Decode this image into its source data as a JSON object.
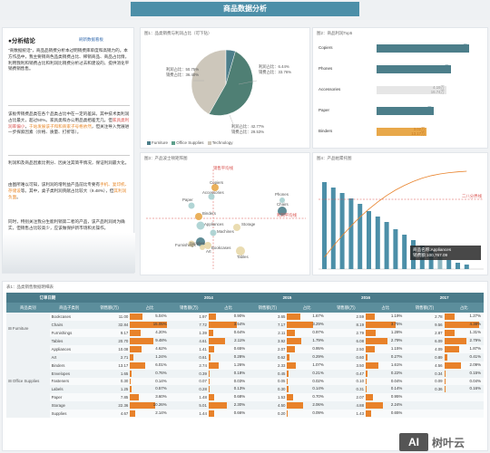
{
  "header": {
    "title": "商品数据分析"
  },
  "analysis": {
    "title": "●分析结论",
    "link": "刷新数据看板",
    "p1": "\"商数据统话\"，商品品销费分析本过明销费库单度和高销力的。本方作品中，我主要销商色品类销费占比、稀销商品、商品占比情，利用我利和销费占比和利润比销费分析过去和建设的，提供消化平销费销售售。",
    "p2a": "该板传销费品类在各个品类占比中在一定的差异。其中技术类利润占比最大，超过50%。家具类和办公用品类相差无几，但",
    "p2b": "家具类利润率偏小",
    "p2c": "，",
    "p2d": "于站发展该子和和商家子号格依然",
    "p2e": "，但关注导入党展进一步探索因素（价格、质量、打折等）。",
    "p3": "利润和及商品因素比例分、因关注其简平情况，保证利润最大化。",
    "p4a": "由图所难以可知，该利润的增利益产品前比专要有",
    "p4b": "手机、复印机、存储设",
    "p4c": "等。其中，桌子类利润贡献占比较大（9.48%），但",
    "p4d": "其利润负面",
    "p4e": "。",
    "p5": "同时，特别关注我分生能利销第二者的产品，该产品利润尚为确实，但销售占比较高少，应该做保护新市场和太操作。"
  },
  "pie": {
    "title": "图1：品类销费与利润占比（可下钻）",
    "legend": [
      {
        "label": "Furniture",
        "color": "#4c7e8a"
      },
      {
        "label": "Office Supplies",
        "color": "#5e9f8c"
      },
      {
        "label": "Technology",
        "color": "#cdc7bb"
      }
    ],
    "labels": {
      "left": [
        "利润占比：50.75%",
        "销费占比：36.40%"
      ],
      "right": [
        "利润占比：6.44%",
        "销费占比：33.76%"
      ],
      "bottom": [
        "利润占比：42.77%",
        "销费占比：29.53%"
      ]
    }
  },
  "hbar": {
    "title": "图2：商品利润Top5",
    "items": [
      {
        "name": "Copiers",
        "l1": "5.56万",
        "l2": "16.07万",
        "v": 55.6,
        "color": "#4c7e8a"
      },
      {
        "name": "Phones",
        "l1": "4.45万",
        "l2": "21.97万",
        "v": 44.5,
        "color": "#4c7e8a"
      },
      {
        "name": "Accessories",
        "l1": "4.19万",
        "l2": "16.74万",
        "v": 41.9,
        "color": "#e6e6e6"
      },
      {
        "name": "Paper",
        "l1": "3.41万",
        "l2": "7.85万",
        "v": 34.1,
        "color": "#4c7e8a"
      },
      {
        "name": "Binders",
        "l1": "3.02万",
        "l2": "13.17万",
        "v": 30.2,
        "color": "#e8a84a"
      }
    ]
  },
  "scatter": {
    "title": "图3：产品波士顿矩阵图",
    "ref_label": "销售平均线",
    "ref_label2": "利润平均线",
    "points": [
      {
        "name": "Copiers",
        "color": "#e8a84a"
      },
      {
        "name": "Accessories",
        "color": "#a8d0d0"
      },
      {
        "name": "Phones",
        "color": "#a8d0d0"
      },
      {
        "name": "Chairs",
        "color": "#4c7e8a"
      },
      {
        "name": "Paper",
        "color": "#a8d0d0"
      },
      {
        "name": "Binders",
        "color": "#e8a84a"
      },
      {
        "name": "Appliances",
        "color": "#a8d0d0"
      },
      {
        "name": "Storage",
        "color": "#e8d8a8"
      },
      {
        "name": "Machines",
        "color": "#a8d0d0"
      },
      {
        "name": "Supplies",
        "color": "#4c7e8a"
      },
      {
        "name": "Furnishings",
        "color": "#e8d8a8"
      },
      {
        "name": "Bookcases",
        "color": "#e8d8a8"
      },
      {
        "name": "Tables",
        "color": "#e8d8a8"
      },
      {
        "name": "Art",
        "color": "#e8d8a8"
      }
    ]
  },
  "pareto": {
    "title": "图4：产品帕累托图",
    "line_label": "二八分界线",
    "tooltip1": "商品名称:Appliances",
    "tooltip2": "销费额:100,767.09"
  },
  "table": {
    "title": "表1：品类销售数据明细表",
    "head1": [
      "订单日期",
      "2014",
      "2015",
      "2016",
      "2017"
    ],
    "head2": [
      "商品类别",
      "商品子类别",
      "销售额(万)",
      "占比",
      "销售额(万)",
      "占比",
      "销售额(万)",
      "占比",
      "销售额(万)",
      "占比",
      "销售额(万)",
      "占比"
    ],
    "categories": [
      "Furniture",
      "Office Supplies"
    ],
    "rows": [
      {
        "sub": "Bookcases",
        "v": [
          "11.00",
          "5.04%",
          "1.97",
          "0.90%",
          "3.65",
          "1.67%",
          "2.59",
          "1.19%",
          "2.78",
          "1.27%"
        ],
        "p": [
          5.04,
          0.9,
          1.67,
          1.19,
          1.27
        ]
      },
      {
        "sub": "Chairs",
        "v": [
          "32.84",
          "15.05%",
          "7.72",
          "3.54%",
          "7.17",
          "3.29%",
          "8.19",
          "3.75%",
          "9.56",
          "4.38%"
        ],
        "p": [
          15.05,
          3.54,
          3.29,
          3.75,
          4.38
        ]
      },
      {
        "sub": "Furnishings",
        "v": [
          "9.17",
          "4.20%",
          "1.39",
          "0.64%",
          "2.11",
          "0.97%",
          "2.79",
          "1.28%",
          "2.87",
          "1.31%"
        ],
        "p": [
          4.2,
          0.64,
          0.97,
          1.28,
          1.31
        ]
      },
      {
        "sub": "Tables",
        "v": [
          "20.70",
          "9.48%",
          "4.61",
          "2.11%",
          "3.92",
          "1.79%",
          "6.08",
          "2.79%",
          "6.09",
          "2.79%"
        ],
        "p": [
          9.48,
          2.11,
          1.79,
          2.79,
          2.79
        ]
      },
      {
        "sub": "Appliances",
        "v": [
          "10.08",
          "4.62%",
          "1.41",
          "0.65%",
          "2.07",
          "0.95%",
          "2.50",
          "1.15%",
          "4.09",
          "1.87%"
        ],
        "p": [
          4.62,
          0.65,
          0.95,
          1.15,
          1.87
        ]
      },
      {
        "sub": "Art",
        "v": [
          "2.71",
          "1.24%",
          "0.61",
          "0.28%",
          "0.62",
          "0.29%",
          "0.60",
          "0.27%",
          "0.89",
          "0.41%"
        ],
        "p": [
          1.24,
          0.28,
          0.29,
          0.27,
          0.41
        ]
      },
      {
        "sub": "Binders",
        "v": [
          "13.17",
          "6.01%",
          "2.74",
          "1.26%",
          "2.33",
          "1.07%",
          "3.50",
          "1.61%",
          "4.56",
          "2.09%"
        ],
        "p": [
          6.01,
          1.26,
          1.07,
          1.61,
          2.09
        ]
      },
      {
        "sub": "Envelopes",
        "v": [
          "1.65",
          "0.76%",
          "0.39",
          "0.18%",
          "0.45",
          "0.21%",
          "0.47",
          "0.22%",
          "0.34",
          "0.15%"
        ],
        "p": [
          0.76,
          0.18,
          0.21,
          0.22,
          0.15
        ]
      },
      {
        "sub": "Fasteners",
        "v": [
          "0.30",
          "0.14%",
          "0.07",
          "0.03%",
          "0.05",
          "0.02%",
          "0.10",
          "0.04%",
          "0.09",
          "0.04%"
        ],
        "p": [
          0.14,
          0.03,
          0.02,
          0.04,
          0.04
        ]
      },
      {
        "sub": "Labels",
        "v": [
          "1.25",
          "0.57%",
          "0.28",
          "0.13%",
          "0.30",
          "0.14%",
          "0.31",
          "0.14%",
          "0.36",
          "0.16%"
        ],
        "p": [
          0.57,
          0.13,
          0.14,
          0.14,
          0.16
        ]
      },
      {
        "sub": "Paper",
        "v": [
          "7.85",
          "3.60%",
          "1.48",
          "0.68%",
          "1.53",
          "0.70%",
          "2.07",
          "0.95%",
          "",
          ""
        ],
        "p": [
          3.6,
          0.68,
          0.7,
          0.95,
          0
        ]
      },
      {
        "sub": "Storage",
        "v": [
          "22.36",
          "10.26%",
          "5.01",
          "2.30%",
          "4.50",
          "2.06%",
          "4.88",
          "2.24%",
          "",
          ""
        ],
        "p": [
          10.26,
          2.3,
          2.06,
          2.24,
          0
        ]
      },
      {
        "sub": "Supplies",
        "v": [
          "4.67",
          "2.14%",
          "1.44",
          "0.66%",
          "0.20",
          "0.09%",
          "1.43",
          "0.65%",
          "",
          ""
        ],
        "p": [
          2.14,
          0.66,
          0.09,
          0.65,
          0
        ]
      }
    ]
  },
  "watermark": {
    "box": "AI",
    "text": "树叶云"
  }
}
